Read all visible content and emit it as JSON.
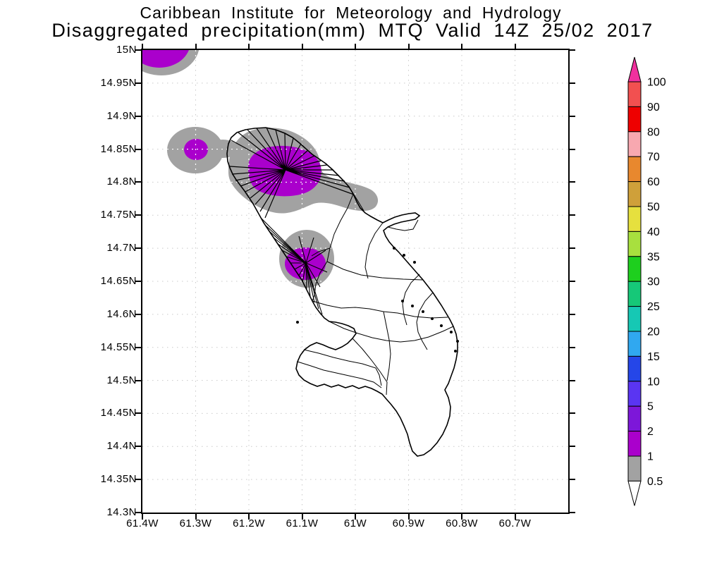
{
  "title": {
    "line1": "Caribbean Institute for Meteorology and Hydrology",
    "line2": "Disaggregated precipitation(mm) MTQ Valid 14Z 25/02 2017"
  },
  "chart_data": {
    "type": "heatmap",
    "subtype": "shaded-contour precipitation map",
    "variable": "Disaggregated precipitation (mm)",
    "region_code": "MTQ",
    "region_name": "Martinique",
    "valid_time": "14Z 25/02 2017",
    "lat_axis": {
      "min": 14.3,
      "max": 15.0,
      "tick_labels": [
        "15N",
        "14.95N",
        "14.9N",
        "14.85N",
        "14.8N",
        "14.75N",
        "14.7N",
        "14.65N",
        "14.6N",
        "14.55N",
        "14.5N",
        "14.45N",
        "14.4N",
        "14.35N",
        "14.3N"
      ]
    },
    "lon_axis": {
      "min": -61.4,
      "max": -60.6,
      "tick_labels": [
        "61.4W",
        "61.3W",
        "61.2W",
        "61.1W",
        "61W",
        "60.9W",
        "60.8W",
        "60.7W"
      ]
    },
    "grid": "dotted lat/lon graticule every 0.05 deg lat / 0.1 deg lon",
    "colorbar": {
      "orientation": "vertical-right",
      "labels_top_to_bottom": [
        "100",
        "90",
        "80",
        "70",
        "60",
        "50",
        "40",
        "35",
        "30",
        "25",
        "20",
        "15",
        "10",
        "5",
        "2",
        "1",
        "0.5"
      ],
      "segment_colors_top_to_bottom": [
        "#f25050",
        "#ee0000",
        "#f8a8b0",
        "#e8882e",
        "#cfa03a",
        "#e6e03e",
        "#a8e03e",
        "#1ecf1e",
        "#16c878",
        "#16c8b4",
        "#30a8f0",
        "#2546e8",
        "#5a35f2",
        "#7d17d9",
        "#aa00cc",
        "#a2a2a2"
      ],
      "above_max_arrow_color": "#f0309e",
      "below_min_arrow_color": "#ffffff"
    },
    "shading_colors_on_map": {
      "band_0.5_1mm": "#a2a2a2",
      "band_1_2mm": "#aa00cc"
    },
    "precip_cells": [
      {
        "area": "northwest map corner near 15N 61.35W",
        "bands": [
          "0.5-1 mm",
          "1-2 mm"
        ]
      },
      {
        "area": "offshore west of island ~14.85N 61.30W",
        "bands": [
          "0.5-1 mm",
          "1-2 mm"
        ]
      },
      {
        "area": "Mont Pelee / northern Martinique ~14.82N 61.17W with tail to SE",
        "bands": [
          "0.5-1 mm",
          "1-2 mm"
        ]
      },
      {
        "area": "Pitons du Carbet / central Martinique ~14.68N 61.12W",
        "bands": [
          "0.5-1 mm",
          "1-2 mm"
        ]
      }
    ]
  }
}
